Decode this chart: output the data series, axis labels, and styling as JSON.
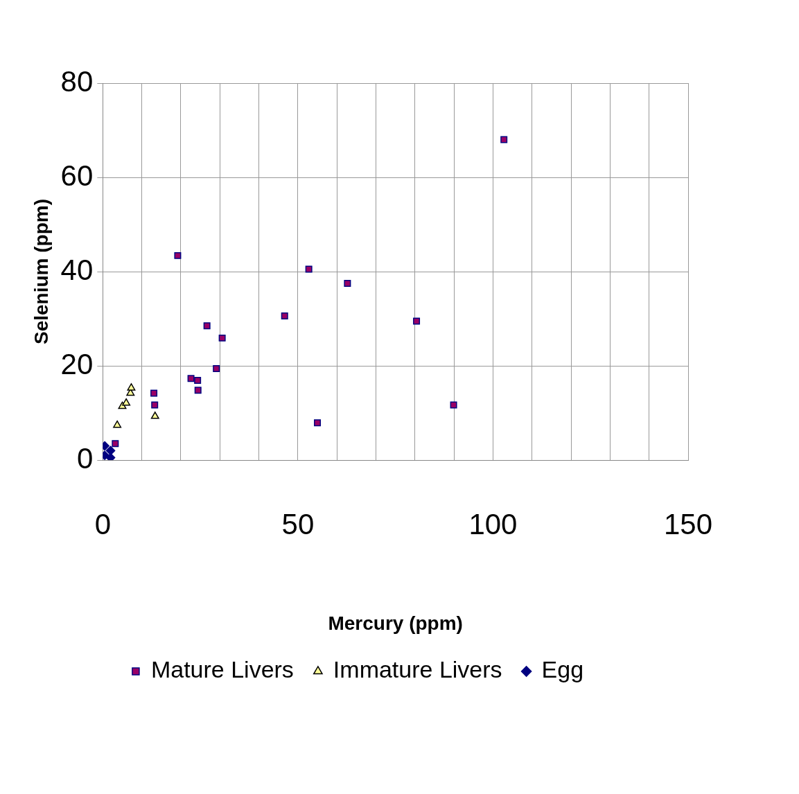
{
  "chart_data": {
    "type": "scatter",
    "xlabel": "Mercury (ppm)",
    "ylabel": "Selenium (ppm)",
    "xlim": [
      0,
      150
    ],
    "xticks": [
      0,
      {
        "value": 10,
        "label": null
      },
      {
        "value": 20,
        "label": null
      },
      {
        "value": 30,
        "label": null
      },
      {
        "value": 40,
        "label": null
      },
      50,
      {
        "value": 60,
        "label": null
      },
      {
        "value": 70,
        "label": null
      },
      {
        "value": 80,
        "label": null
      },
      {
        "value": 90,
        "label": null
      },
      100,
      {
        "value": 110,
        "label": null
      },
      {
        "value": 120,
        "label": null
      },
      {
        "value": 130,
        "label": null
      },
      {
        "value": 140,
        "label": null
      },
      150
    ],
    "ylim": [
      0,
      80
    ],
    "yticks": [
      0,
      20,
      40,
      60,
      80
    ],
    "grid": true,
    "legend": "bottom",
    "series": [
      {
        "name": "Mature Livers",
        "color": "#990066",
        "marker": "square",
        "x": [
          102.8,
          19.2,
          52.8,
          62.7,
          46.6,
          26.7,
          80.4,
          30.6,
          29.1,
          22.6,
          24.3,
          24.4,
          13.1,
          13.3,
          89.9,
          55.0,
          3.2
        ],
        "values": [
          68.0,
          43.4,
          40.5,
          37.5,
          30.6,
          28.5,
          29.5,
          25.9,
          19.4,
          17.3,
          16.9,
          14.8,
          14.2,
          11.7,
          11.7,
          7.9,
          3.5
        ]
      },
      {
        "name": "Immature Livers",
        "color": "#ffff99",
        "marker": "triangle",
        "x": [
          3.7,
          5.0,
          6.0,
          7.1,
          7.3,
          13.4
        ],
        "values": [
          7.4,
          11.4,
          12.1,
          14.2,
          15.3,
          9.3
        ]
      },
      {
        "name": "Egg",
        "color": "#000080",
        "marker": "diamond",
        "x": [
          0.5,
          0.5,
          2.0,
          2.0
        ],
        "values": [
          3.0,
          1.0,
          0.5,
          2.0
        ]
      }
    ]
  }
}
